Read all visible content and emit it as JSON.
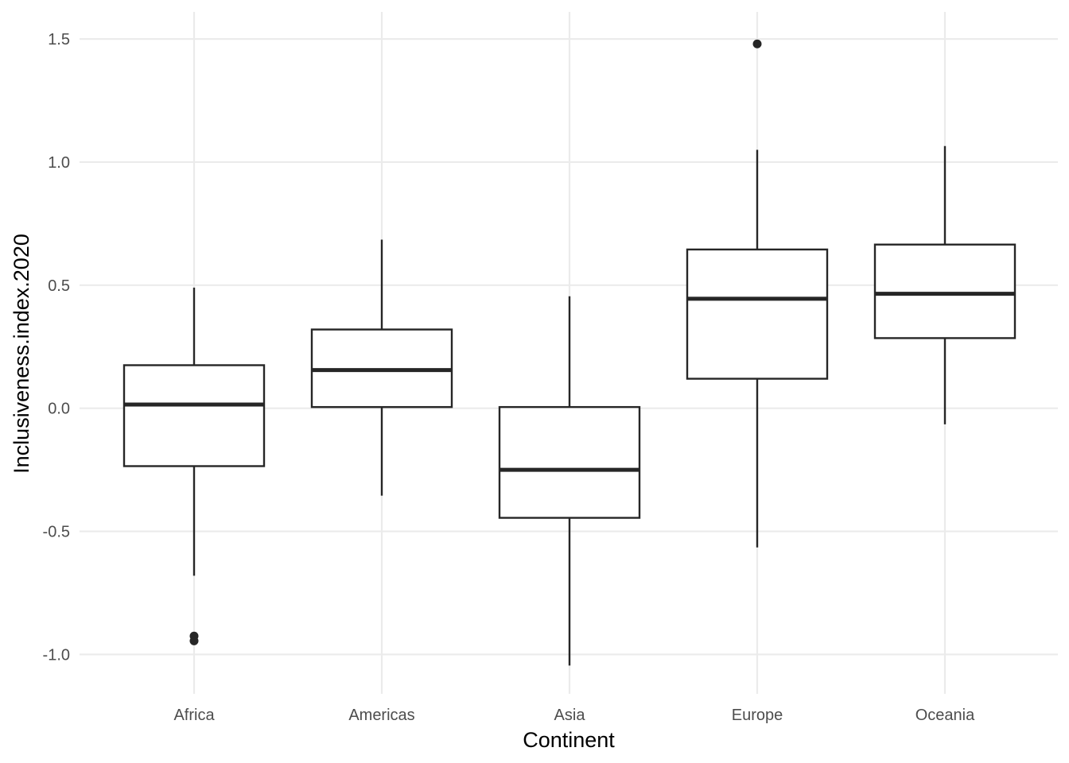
{
  "chart_data": {
    "type": "boxplot",
    "xlabel": "Continent",
    "ylabel": "Inclusiveness.index.2020",
    "ylim": [
      -1.16,
      1.61
    ],
    "yticks": [
      -1.0,
      -0.5,
      0.0,
      0.5,
      1.0,
      1.5
    ],
    "ytick_labels": [
      "-1.0",
      "-0.5",
      "0.0",
      "0.5",
      "1.0",
      "1.5"
    ],
    "grid": true,
    "categories": [
      "Africa",
      "Americas",
      "Asia",
      "Europe",
      "Oceania"
    ],
    "boxes": [
      {
        "category": "Africa",
        "whisker_low": -0.68,
        "q1": -0.235,
        "median": 0.015,
        "q3": 0.175,
        "whisker_high": 0.49,
        "outliers": [
          -0.925,
          -0.945
        ]
      },
      {
        "category": "Americas",
        "whisker_low": -0.355,
        "q1": 0.005,
        "median": 0.155,
        "q3": 0.32,
        "whisker_high": 0.685,
        "outliers": []
      },
      {
        "category": "Asia",
        "whisker_low": -1.045,
        "q1": -0.445,
        "median": -0.25,
        "q3": 0.005,
        "whisker_high": 0.455,
        "outliers": []
      },
      {
        "category": "Europe",
        "whisker_low": -0.565,
        "q1": 0.12,
        "median": 0.445,
        "q3": 0.645,
        "whisker_high": 1.05,
        "outliers": [
          1.48
        ]
      },
      {
        "category": "Oceania",
        "whisker_low": -0.065,
        "q1": 0.285,
        "median": 0.465,
        "q3": 0.665,
        "whisker_high": 1.065,
        "outliers": []
      }
    ]
  }
}
